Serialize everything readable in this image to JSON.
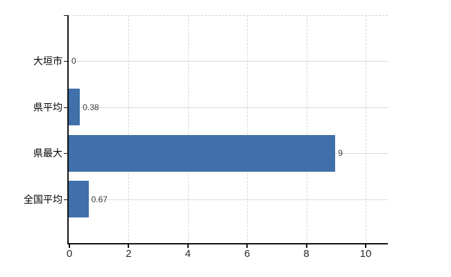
{
  "chart": {
    "background": "#ffffff",
    "bar_color": "#4070AA",
    "axis_color": "#111111",
    "h_grid_color": "#d5dbd3",
    "v_grid_color": "#d8d5d8",
    "top_border_color": "#d0d0d0",
    "category_label_color": "#000000",
    "tick_label_color": "#2b2b2b",
    "value_label_color": "#3c3c3c"
  },
  "chart_data": {
    "type": "bar",
    "orientation": "horizontal",
    "title": "",
    "xlabel": "",
    "ylabel": "",
    "categories": [
      "大垣市",
      "県平均",
      "県最大",
      "全国平均"
    ],
    "values": [
      0,
      0.38,
      9,
      0.67
    ],
    "value_labels": [
      "0",
      "0.38",
      "9",
      "0.67"
    ],
    "x_tick_labels": [
      "0",
      "2",
      "4",
      "6",
      "8",
      "10"
    ],
    "x_tick_values": [
      0,
      2,
      4,
      6,
      8,
      10
    ],
    "xlim": [
      0,
      10.8
    ],
    "grid": true,
    "legend_position": "none"
  }
}
